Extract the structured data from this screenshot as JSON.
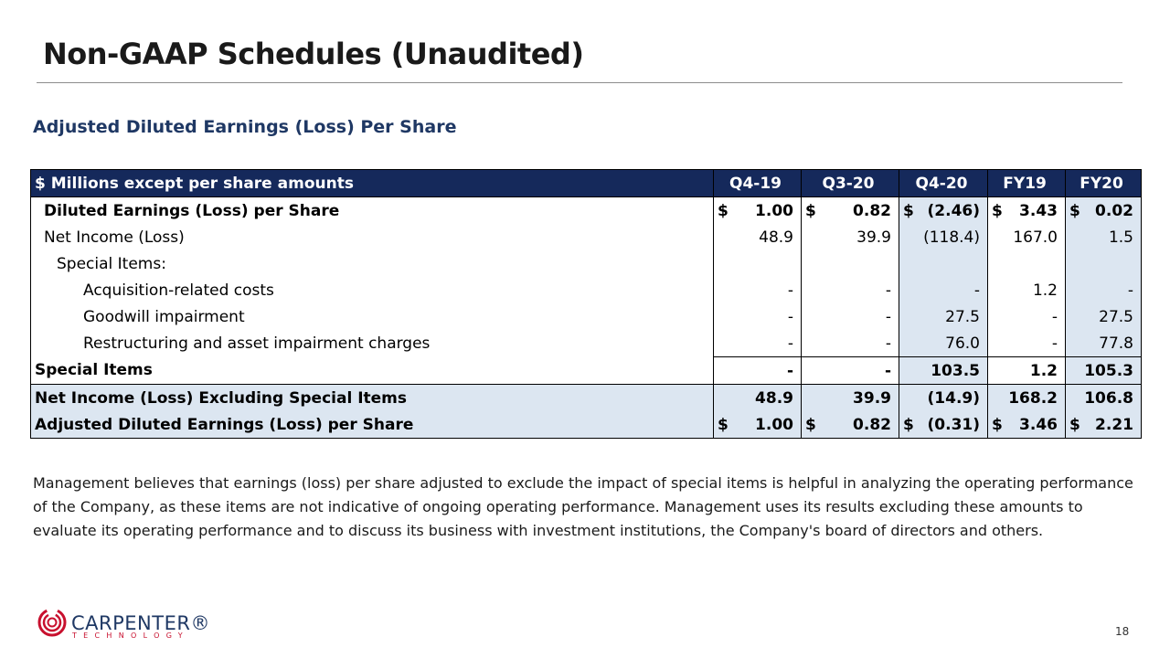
{
  "header": {
    "title": "Non-GAAP Schedules (Unaudited)"
  },
  "subtitle": "Adjusted Diluted Earnings (Loss) Per Share",
  "table": {
    "columns": [
      "$ Millions except per share amounts",
      "Q4-19",
      "Q3-20",
      "Q4-20",
      "FY19",
      "FY20"
    ],
    "rows": [
      {
        "label": "Diluted Earnings (Loss) per Share",
        "cells": [
          {
            "currency": "$",
            "amount": "1.00"
          },
          {
            "currency": "$",
            "amount": "0.82"
          },
          {
            "currency": "$",
            "amount": "(2.46)"
          },
          {
            "currency": "$",
            "amount": "3.43"
          },
          {
            "currency": "$",
            "amount": "0.02"
          }
        ]
      },
      {
        "label": "Net Income (Loss)",
        "cells": [
          "48.9",
          "39.9",
          "(118.4)",
          "167.0",
          "1.5"
        ]
      },
      {
        "label": "Special Items:",
        "cells": []
      },
      {
        "label": "Acquisition-related costs",
        "cells": [
          "-",
          "-",
          "-",
          "1.2",
          "-"
        ]
      },
      {
        "label": "Goodwill impairment",
        "cells": [
          "-",
          "-",
          "27.5",
          "-",
          "27.5"
        ]
      },
      {
        "label": "Restructuring and asset impairment charges",
        "cells": [
          "-",
          "-",
          "76.0",
          "-",
          "77.8"
        ]
      },
      {
        "label": "Special Items",
        "cells": [
          "-",
          "-",
          "103.5",
          "1.2",
          "105.3"
        ]
      },
      {
        "label": "Net Income (Loss) Excluding Special Items",
        "cells": [
          "48.9",
          "39.9",
          "(14.9)",
          "168.2",
          "106.8"
        ]
      },
      {
        "label": "Adjusted Diluted Earnings (Loss) per Share",
        "cells": [
          {
            "currency": "$",
            "amount": "1.00"
          },
          {
            "currency": "$",
            "amount": "0.82"
          },
          {
            "currency": "$",
            "amount": "(0.31)"
          },
          {
            "currency": "$",
            "amount": "3.46"
          },
          {
            "currency": "$",
            "amount": "2.21"
          }
        ]
      }
    ]
  },
  "note": "Management believes that earnings (loss) per share adjusted to exclude the impact of special items is helpful in analyzing the operating performance of the Company, as these items are not indicative of ongoing operating performance. Management uses its results excluding these amounts to evaluate its operating performance and to discuss its business with investment institutions, the Company's board of directors and others.",
  "footer": {
    "logo": "CARPENTER®",
    "logo_sub": "TECHNOLOGY",
    "page": "18"
  }
}
